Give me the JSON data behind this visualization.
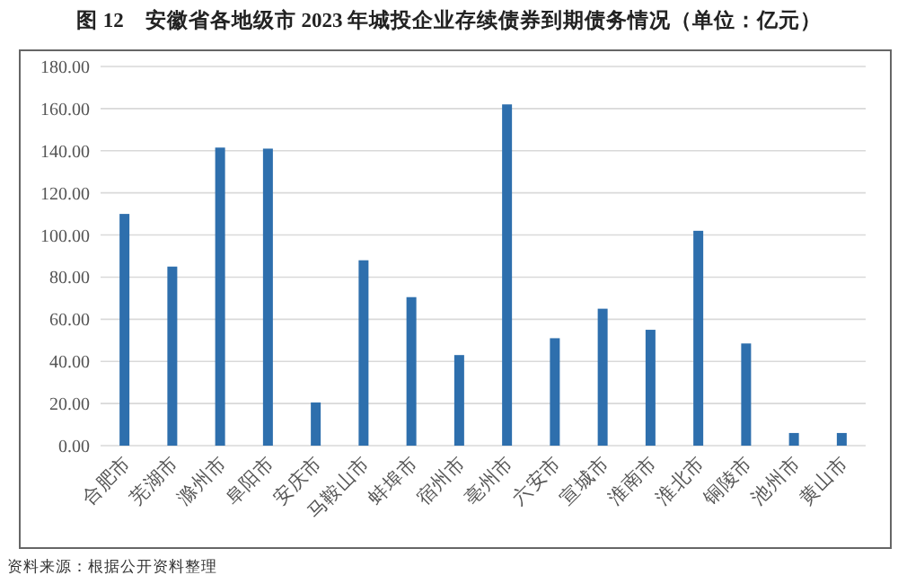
{
  "chart_data": {
    "type": "bar",
    "title": "图 12　安徽省各地级市 2023 年城投企业存续债券到期债务情况（单位：亿元）",
    "categories": [
      "合肥市",
      "芜湖市",
      "滁州市",
      "阜阳市",
      "安庆市",
      "马鞍山市",
      "蚌埠市",
      "宿州市",
      "亳州市",
      "六安市",
      "宣城市",
      "淮南市",
      "淮北市",
      "铜陵市",
      "池州市",
      "黄山市"
    ],
    "values": [
      110,
      85,
      141.5,
      141,
      20.5,
      88,
      70.5,
      43,
      162,
      51,
      65,
      55,
      102,
      48.5,
      6,
      6
    ],
    "color": "#2e6fad",
    "ylim": [
      0,
      180
    ],
    "yticks": [
      {
        "value": 0,
        "label": "0.00"
      },
      {
        "value": 20,
        "label": "20.00"
      },
      {
        "value": 40,
        "label": "40.00"
      },
      {
        "value": 60,
        "label": "60.00"
      },
      {
        "value": 80,
        "label": "80.00"
      },
      {
        "value": 100,
        "label": "100.00"
      },
      {
        "value": 120,
        "label": "120.00"
      },
      {
        "value": 140,
        "label": "140.00"
      },
      {
        "value": 160,
        "label": "160.00"
      },
      {
        "value": 180,
        "label": "180.00"
      }
    ],
    "grid": "y",
    "annotations": [
      "资料来源：根据公开资料整理"
    ]
  }
}
